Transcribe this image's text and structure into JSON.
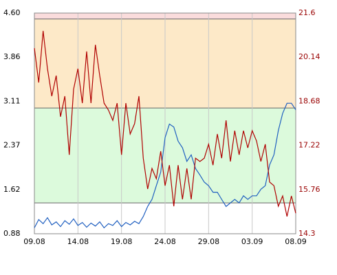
{
  "chart_data": {
    "type": "line",
    "x": [
      0,
      0.5,
      1,
      1.5,
      2,
      2.5,
      3,
      3.5,
      4,
      4.5,
      5,
      5.5,
      6,
      6.5,
      7,
      7.5,
      8,
      8.5,
      9,
      9.5,
      10,
      10.5,
      11,
      11.5,
      12,
      12.5,
      13,
      13.5,
      14,
      14.5,
      15,
      15.5,
      16,
      16.5,
      17,
      17.5,
      18,
      18.5,
      19,
      19.5,
      20,
      20.5,
      21,
      21.5,
      22,
      22.5,
      23,
      23.5,
      24,
      24.5,
      25,
      25.5,
      26,
      26.5,
      27,
      27.5,
      28,
      28.5,
      29,
      29.5,
      30
    ],
    "series": [
      {
        "color": "#1f5fc0",
        "axis": "y",
        "values": [
          0.98,
          1.12,
          1.05,
          1.15,
          1.03,
          1.08,
          1.0,
          1.1,
          1.04,
          1.13,
          1.02,
          1.07,
          0.99,
          1.06,
          1.01,
          1.08,
          0.98,
          1.05,
          1.02,
          1.1,
          1.0,
          1.07,
          1.03,
          1.09,
          1.05,
          1.17,
          1.34,
          1.46,
          1.69,
          1.92,
          2.5,
          2.73,
          2.68,
          2.44,
          2.33,
          2.1,
          2.21,
          1.98,
          1.87,
          1.75,
          1.69,
          1.58,
          1.58,
          1.46,
          1.34,
          1.4,
          1.46,
          1.4,
          1.52,
          1.46,
          1.52,
          1.52,
          1.63,
          1.69,
          2.04,
          2.21,
          2.62,
          2.91,
          3.08,
          3.08,
          2.97
        ]
      },
      {
        "color": "#b00000",
        "axis": "y2",
        "values": [
          20.44,
          19.3,
          21.01,
          19.76,
          18.85,
          19.53,
          18.17,
          18.85,
          16.91,
          19.08,
          19.76,
          18.62,
          20.33,
          18.62,
          20.55,
          19.53,
          18.62,
          18.39,
          18.05,
          18.62,
          16.91,
          18.62,
          17.6,
          17.94,
          18.85,
          16.8,
          15.78,
          16.46,
          16.12,
          17.03,
          15.89,
          16.57,
          15.21,
          16.57,
          15.44,
          16.46,
          15.44,
          16.8,
          16.69,
          16.8,
          17.26,
          16.57,
          17.6,
          16.8,
          18.05,
          16.69,
          17.71,
          16.91,
          17.71,
          17.14,
          17.71,
          17.37,
          16.69,
          17.26,
          16.01,
          15.89,
          15.21,
          15.55,
          14.87,
          15.55,
          14.98
        ]
      }
    ],
    "xlim": [
      0,
      30
    ],
    "xticks": [
      {
        "value": 0,
        "label": "09.08"
      },
      {
        "value": 5,
        "label": "14.08"
      },
      {
        "value": 10,
        "label": "19.08"
      },
      {
        "value": 15,
        "label": "24.08"
      },
      {
        "value": 20,
        "label": "29.08"
      },
      {
        "value": 25,
        "label": "03.09"
      },
      {
        "value": 30,
        "label": "08.09"
      }
    ],
    "ylim": [
      0.88,
      4.6
    ],
    "yticks": [
      {
        "value": 0.88,
        "label": "0.88"
      },
      {
        "value": 1.624,
        "label": "1.62"
      },
      {
        "value": 2.368,
        "label": "2.37"
      },
      {
        "value": 3.112,
        "label": "3.11"
      },
      {
        "value": 3.856,
        "label": "3.86"
      },
      {
        "value": 4.6,
        "label": "4.60"
      }
    ],
    "y2lim": [
      14.3,
      21.6
    ],
    "y2ticks": [
      14.3,
      15.76,
      17.22,
      18.68,
      20.14,
      21.6
    ],
    "y2_color": "#990000",
    "bands": [
      {
        "from": 4.5,
        "to": 4.6,
        "color": "#fadcdc"
      },
      {
        "from": 3.0,
        "to": 4.5,
        "color": "#fde9c8"
      },
      {
        "from": 1.4,
        "to": 3.0,
        "color": "#dcfadc"
      }
    ],
    "grid": true
  }
}
